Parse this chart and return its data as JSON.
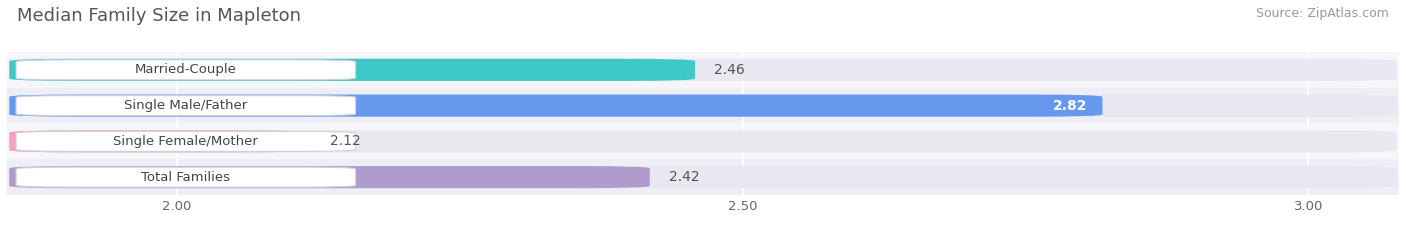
{
  "title": "Median Family Size in Mapleton",
  "source": "Source: ZipAtlas.com",
  "categories": [
    "Married-Couple",
    "Single Male/Father",
    "Single Female/Mother",
    "Total Families"
  ],
  "values": [
    2.46,
    2.82,
    2.12,
    2.42
  ],
  "bar_colors": [
    "#3ec8c8",
    "#6699ee",
    "#f8a0c0",
    "#b09ccc"
  ],
  "track_color": "#e8e8f0",
  "row_bg_colors": [
    "#f5f5fa",
    "#eeeef6"
  ],
  "xmin": 1.85,
  "xmax": 3.08,
  "xticks": [
    2.0,
    2.5,
    3.0
  ],
  "background_color": "#ffffff",
  "bar_height": 0.62,
  "title_fontsize": 13,
  "source_fontsize": 9,
  "label_fontsize": 9.5,
  "value_fontsize": 10
}
